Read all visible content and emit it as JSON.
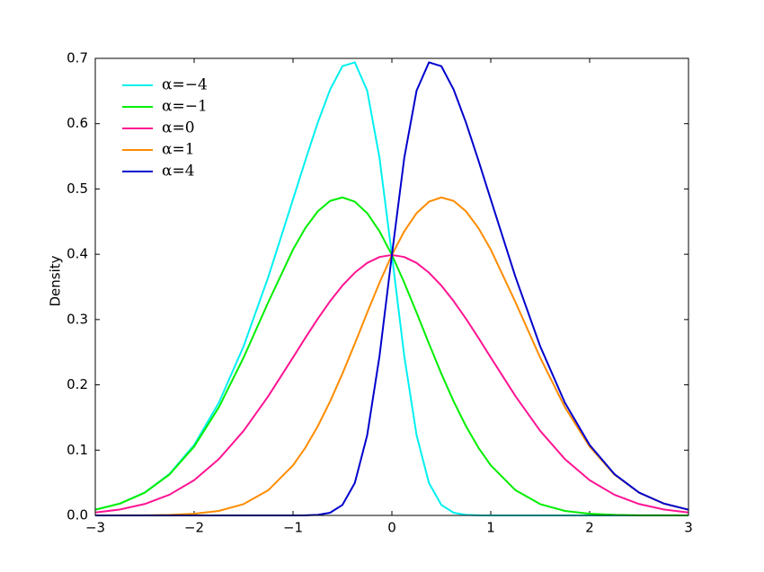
{
  "chart_data": {
    "type": "line",
    "ylabel": "Density",
    "x": [
      -3,
      -2.75,
      -2.5,
      -2.25,
      -2,
      -1.75,
      -1.5,
      -1.25,
      -1,
      -0.875,
      -0.75,
      -0.625,
      -0.5,
      -0.375,
      -0.25,
      -0.125,
      0,
      0.125,
      0.25,
      0.375,
      0.5,
      0.625,
      0.75,
      0.875,
      1,
      1.25,
      1.5,
      1.75,
      2,
      2.25,
      2.5,
      2.75,
      3
    ],
    "series": [
      {
        "name": "α=−4",
        "color": "#00f0f0",
        "values": [
          0.0088,
          0.0182,
          0.035,
          0.0634,
          0.108,
          0.1726,
          0.259,
          0.3652,
          0.484,
          0.5439,
          0.6014,
          0.6521,
          0.6881,
          0.6939,
          0.6507,
          0.5474,
          0.3989,
          0.2442,
          0.1227,
          0.0497,
          0.0161,
          0.0041,
          0.0008,
          0.0001,
          0,
          0,
          0,
          0,
          0,
          0,
          0,
          0,
          0
        ]
      },
      {
        "name": "α=−1",
        "color": "#00ee00",
        "values": [
          0.0088,
          0.0181,
          0.0348,
          0.0626,
          0.1055,
          0.1657,
          0.2417,
          0.3266,
          0.4072,
          0.4402,
          0.4657,
          0.4817,
          0.487,
          0.4805,
          0.463,
          0.4351,
          0.3989,
          0.3565,
          0.3104,
          0.2631,
          0.2172,
          0.1746,
          0.1365,
          0.1038,
          0.0768,
          0.0386,
          0.0173,
          0.0069,
          0.0025,
          0.0008,
          0.0002,
          0.0001,
          0
        ]
      },
      {
        "name": "α=0",
        "color": "#ff1493",
        "values": [
          0.0044,
          0.0091,
          0.0175,
          0.0317,
          0.054,
          0.0863,
          0.1295,
          0.1826,
          0.242,
          0.272,
          0.3011,
          0.3281,
          0.3521,
          0.3718,
          0.3867,
          0.3958,
          0.3989,
          0.3958,
          0.3867,
          0.3718,
          0.3521,
          0.3281,
          0.3011,
          0.272,
          0.242,
          0.1826,
          0.1295,
          0.0863,
          0.054,
          0.0317,
          0.0175,
          0.0091,
          0.0044
        ]
      },
      {
        "name": "α=1",
        "color": "#ff8c00",
        "values": [
          0,
          0.0001,
          0.0002,
          0.0008,
          0.0025,
          0.0069,
          0.0173,
          0.0386,
          0.0768,
          0.1038,
          0.1365,
          0.1746,
          0.2172,
          0.2631,
          0.3104,
          0.3565,
          0.3989,
          0.4351,
          0.463,
          0.4805,
          0.487,
          0.4817,
          0.4657,
          0.4402,
          0.4072,
          0.3266,
          0.2417,
          0.1657,
          0.1055,
          0.0626,
          0.0348,
          0.0181,
          0.0088
        ]
      },
      {
        "name": "α=4",
        "color": "#0000cd",
        "values": [
          0,
          0,
          0,
          0,
          0,
          0,
          0,
          0,
          0,
          0.0001,
          0.0008,
          0.0041,
          0.0161,
          0.0497,
          0.1227,
          0.2442,
          0.3989,
          0.5474,
          0.6507,
          0.6939,
          0.6881,
          0.6521,
          0.6014,
          0.5439,
          0.484,
          0.3652,
          0.259,
          0.1726,
          0.108,
          0.0634,
          0.035,
          0.0182,
          0.0088
        ]
      }
    ],
    "xlim": [
      -3,
      3
    ],
    "ylim": [
      0,
      0.7
    ],
    "xticks": [
      {
        "value": -3,
        "label": "−3"
      },
      {
        "value": -2,
        "label": "−2"
      },
      {
        "value": -1,
        "label": "−1"
      },
      0,
      1,
      2,
      3
    ],
    "yticks": [
      {
        "value": 0,
        "label": "0.0"
      },
      0.1,
      0.2,
      0.3,
      0.4,
      0.5,
      0.6,
      0.7
    ],
    "legend": "upper-left"
  }
}
